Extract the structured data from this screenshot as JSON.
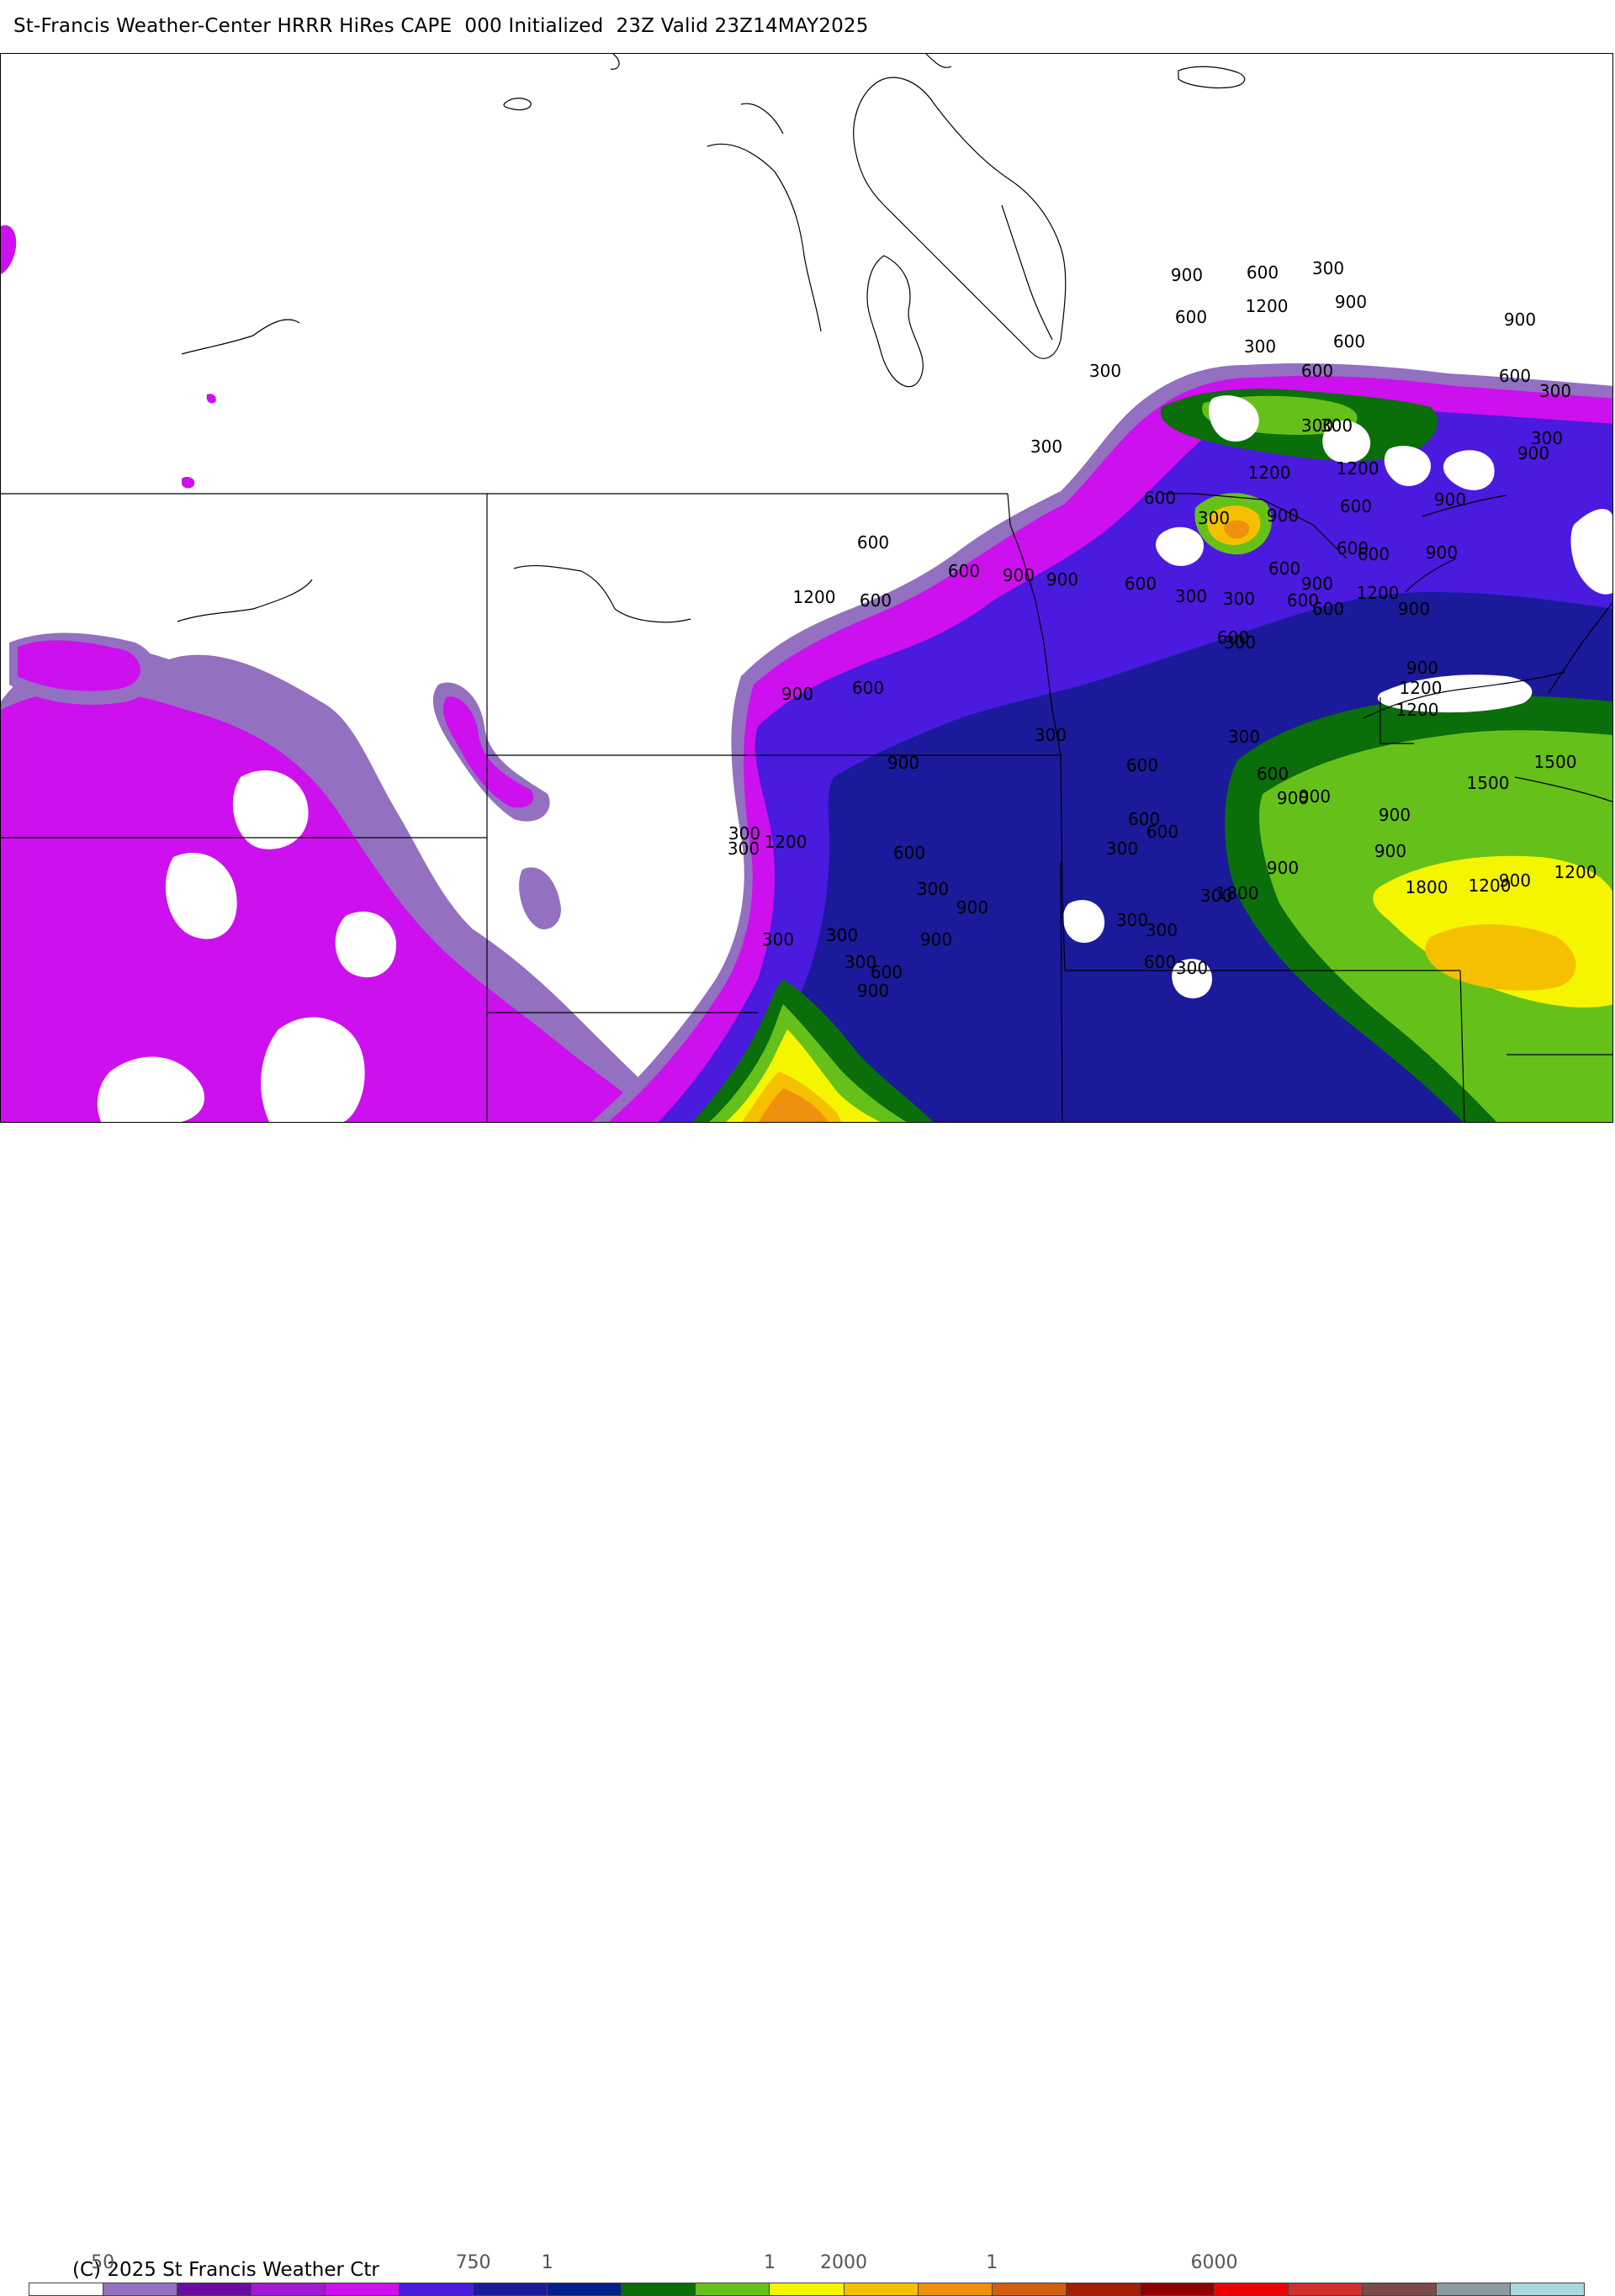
{
  "header": {
    "title": "St-Francis Weather-Center HRRR HiRes CAPE  000 Initialized  23Z Valid 23Z14MAY2025"
  },
  "footer": {
    "copyright": "(C) 2025 St Francis Weather Ctr"
  },
  "colorbar": {
    "colors": [
      "#ffffff",
      "#9370c0",
      "#6a0ca0",
      "#a21bd0",
      "#cc10ee",
      "#4a1adf",
      "#1a1a9a",
      "#00218a",
      "#0a6e0a",
      "#66c01a",
      "#f5f500",
      "#f5c000",
      "#ee9010",
      "#d06010",
      "#a02000",
      "#900000",
      "#ee0000",
      "#d03030",
      "#7a4a4a",
      "#8a9aa0",
      "#a8d8e0"
    ],
    "tick_labels": [
      {
        "text": "50",
        "slot": 1
      },
      {
        "text": "750",
        "slot": 6
      },
      {
        "text": "1",
        "slot": 7
      },
      {
        "text": "1",
        "slot": 10
      },
      {
        "text": "2000",
        "slot": 11
      },
      {
        "text": "1",
        "slot": 13
      },
      {
        "text": "6000",
        "slot": 16
      }
    ]
  },
  "contour_labels": [
    "900",
    "600",
    "300",
    "1200",
    "600",
    "900",
    "600",
    "300",
    "300",
    "600",
    "900",
    "300",
    "300",
    "600",
    "300",
    "600",
    "300",
    "1200",
    "900",
    "300",
    "600",
    "900",
    "600",
    "900",
    "300",
    "600",
    "900",
    "600",
    "600",
    "1200",
    "600",
    "900",
    "600",
    "300",
    "900",
    "1200",
    "600",
    "900",
    "600",
    "900",
    "600",
    "1200",
    "300",
    "900",
    "1200",
    "600",
    "300",
    "1200",
    "1500",
    "600",
    "900",
    "900",
    "300",
    "600",
    "300",
    "900",
    "900",
    "1800",
    "1200",
    "300",
    "1200",
    "300",
    "600",
    "300",
    "600",
    "900",
    "1500",
    "1200",
    "900",
    "900",
    "600",
    "300",
    "600",
    "900",
    "900",
    "300",
    "600",
    "1800",
    "900",
    "300",
    "300",
    "300",
    "300",
    "300",
    "300",
    "600",
    "900"
  ],
  "map": {
    "features": [
      "state-borders",
      "coastlines",
      "lakes"
    ],
    "field": "CAPE"
  }
}
